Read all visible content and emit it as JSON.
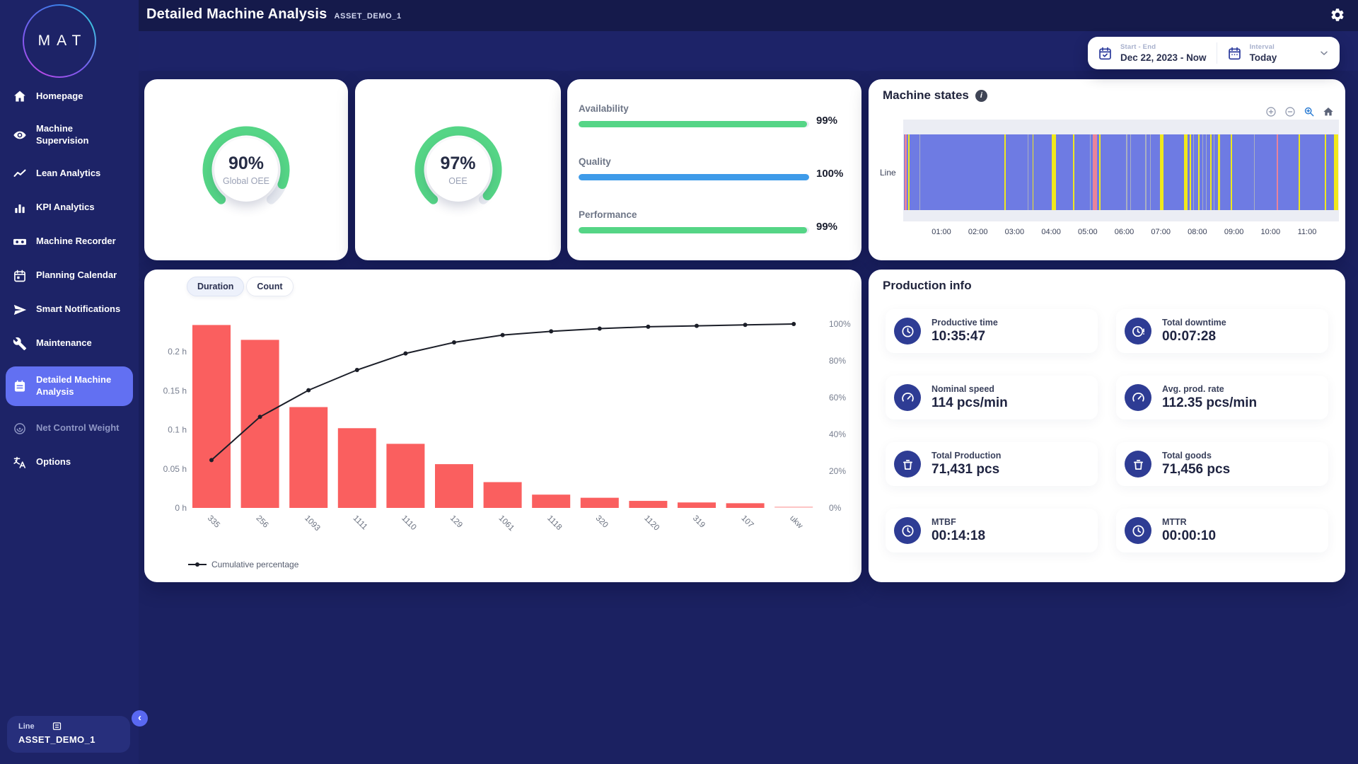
{
  "header": {
    "title": "Detailed Machine Analysis",
    "asset": "ASSET_DEMO_1"
  },
  "sidebar": {
    "logo": "MAT",
    "items": [
      {
        "label": "Homepage",
        "icon": "home"
      },
      {
        "label": "Machine Supervision",
        "icon": "eye"
      },
      {
        "label": "Lean Analytics",
        "icon": "trend"
      },
      {
        "label": "KPI Analytics",
        "icon": "bars"
      },
      {
        "label": "Machine Recorder",
        "icon": "recorder"
      },
      {
        "label": "Planning Calendar",
        "icon": "calendar"
      },
      {
        "label": "Smart Notifications",
        "icon": "send"
      },
      {
        "label": "Maintenance",
        "icon": "wrench"
      },
      {
        "label": "Detailed Machine Analysis",
        "icon": "notepad",
        "active": true
      },
      {
        "label": "Net Control Weight",
        "icon": "spiral",
        "disabled": true
      },
      {
        "label": "Options",
        "icon": "translate"
      }
    ],
    "asset_chip": {
      "type": "Line",
      "name": "ASSET_DEMO_1"
    }
  },
  "filters": {
    "start_end_label": "Start - End",
    "start_end_value": "Dec 22, 2023 - Now",
    "interval_label": "Interval",
    "interval_value": "Today"
  },
  "gauges": [
    {
      "percent": 90,
      "display": "90%",
      "label": "Global OEE"
    },
    {
      "percent": 97,
      "display": "97%",
      "label": "OEE"
    }
  ],
  "kpis": [
    {
      "label": "Availability",
      "percent": 99,
      "display": "99%",
      "color": "#55D586"
    },
    {
      "label": "Quality",
      "percent": 100,
      "display": "100%",
      "color": "#3E9BE9"
    },
    {
      "label": "Performance",
      "percent": 99,
      "display": "99%",
      "color": "#55D586"
    }
  ],
  "machine_states": {
    "title": "Machine states"
  },
  "production": {
    "title": "Production info",
    "items": [
      {
        "label": "Productive time",
        "value": "10:35:47",
        "icon": "clock"
      },
      {
        "label": "Total downtime",
        "value": "00:07:28",
        "icon": "clock-alert"
      },
      {
        "label": "Nominal speed",
        "value": "114 pcs/min",
        "icon": "gauge"
      },
      {
        "label": "Avg. prod. rate",
        "value": "112.35 pcs/min",
        "icon": "gauge"
      },
      {
        "label": "Total Production",
        "value": "71,431 pcs",
        "icon": "bin"
      },
      {
        "label": "Total goods",
        "value": "71,456 pcs",
        "icon": "bin"
      },
      {
        "label": "MTBF",
        "value": "00:14:18",
        "icon": "clock"
      },
      {
        "label": "MTTR",
        "value": "00:00:10",
        "icon": "clock"
      }
    ]
  },
  "chart_data": [
    {
      "type": "pareto",
      "tabs": [
        "Duration",
        "Count"
      ],
      "active_tab": "Duration",
      "categories": [
        "335",
        "256",
        "1093",
        "1111",
        "1110",
        "129",
        "1061",
        "1118",
        "320",
        "1120",
        "319",
        "107",
        "ukw"
      ],
      "values_hours": [
        0.234,
        0.215,
        0.129,
        0.102,
        0.082,
        0.056,
        0.033,
        0.017,
        0.013,
        0.009,
        0.007,
        0.006,
        0.002
      ],
      "cumulative_pct": [
        26,
        49.5,
        64,
        75,
        84,
        90,
        94,
        96,
        97.5,
        98.5,
        99,
        99.5,
        100
      ],
      "left_ticks": [
        "0.2 h",
        "0.15 h",
        "0.1 h",
        "0.05 h",
        "0 h"
      ],
      "right_ticks": [
        "100%",
        "80%",
        "60%",
        "40%",
        "20%",
        "0%"
      ],
      "ylim_hours": [
        0,
        0.25
      ],
      "legend": "Cumulative percentage",
      "bar_color": "#FA5F5F",
      "line_color": "#1B1E28"
    },
    {
      "type": "timeline",
      "title": "Machine states",
      "row_label": "Line",
      "x_ticks": [
        "01:00",
        "02:00",
        "03:00",
        "04:00",
        "05:00",
        "06:00",
        "07:00",
        "08:00",
        "09:00",
        "10:00",
        "11:00"
      ],
      "base_color": "#6E7BE3",
      "stripe_colors": {
        "y": "#F0E81C",
        "p": "#E8839B",
        "g": "#A9AFC2"
      },
      "stripes": [
        [
          0.002,
          0.5,
          "p"
        ],
        [
          0.01,
          0.25,
          "y"
        ],
        [
          0.036,
          0.2,
          "g"
        ],
        [
          0.232,
          0.3,
          "y"
        ],
        [
          0.285,
          0.2,
          "g"
        ],
        [
          0.296,
          0.25,
          "y"
        ],
        [
          0.341,
          0.9,
          "y"
        ],
        [
          0.39,
          0.3,
          "y"
        ],
        [
          0.428,
          0.2,
          "g"
        ],
        [
          0.435,
          1.0,
          "p"
        ],
        [
          0.449,
          0.3,
          "y"
        ],
        [
          0.512,
          0.2,
          "g"
        ],
        [
          0.521,
          0.2,
          "g"
        ],
        [
          0.556,
          0.2,
          "g"
        ],
        [
          0.566,
          0.2,
          "g"
        ],
        [
          0.59,
          0.8,
          "y"
        ],
        [
          0.645,
          0.8,
          "y"
        ],
        [
          0.658,
          0.3,
          "y"
        ],
        [
          0.666,
          0.2,
          "g"
        ],
        [
          0.678,
          0.3,
          "y"
        ],
        [
          0.687,
          0.2,
          "g"
        ],
        [
          0.695,
          0.2,
          "g"
        ],
        [
          0.705,
          0.3,
          "y"
        ],
        [
          0.713,
          0.2,
          "g"
        ],
        [
          0.723,
          0.5,
          "y"
        ],
        [
          0.753,
          0.35,
          "y"
        ],
        [
          0.806,
          0.2,
          "g"
        ],
        [
          0.859,
          0.3,
          "p"
        ],
        [
          0.908,
          0.35,
          "y"
        ],
        [
          0.969,
          0.3,
          "y"
        ],
        [
          0.99,
          1.0,
          "y"
        ]
      ]
    }
  ]
}
